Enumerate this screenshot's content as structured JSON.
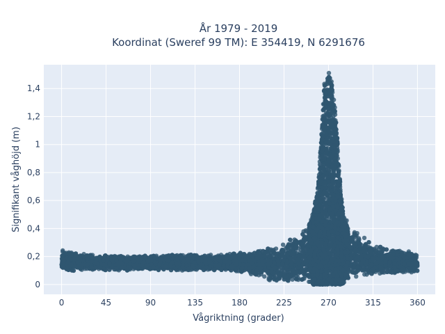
{
  "chart_data": {
    "type": "scatter",
    "title_line1": "År 1979 - 2019",
    "title_line2": "Koordinat (Sweref 99 TM): E 354419, N 6291676",
    "xlabel": "Vågriktning (grader)",
    "ylabel": "Signifikant våghöjd (m)",
    "xlim": [
      -18,
      378
    ],
    "ylim": [
      -0.07,
      1.57
    ],
    "x_ticks": [
      0,
      45,
      90,
      135,
      180,
      225,
      270,
      315,
      360
    ],
    "x_tick_labels": [
      "0",
      "45",
      "90",
      "135",
      "180",
      "225",
      "270",
      "315",
      "360"
    ],
    "y_ticks": [
      0,
      0.2,
      0.4,
      0.6,
      0.8,
      1.0,
      1.2,
      1.4
    ],
    "y_tick_labels": [
      "0",
      "0,2",
      "0,4",
      "0,6",
      "0,8",
      "1",
      "1,2",
      "1,4"
    ],
    "grid": true,
    "marker_color": "#2f5670",
    "plot_bg": "#e5ecf6",
    "envelope": {
      "description_x": [
        0,
        20,
        45,
        90,
        135,
        160,
        180,
        200,
        215,
        230,
        240,
        248,
        255,
        260,
        263,
        266,
        270,
        273,
        276,
        279,
        282,
        285,
        290,
        300,
        315,
        330,
        345,
        360
      ],
      "upper": [
        0.25,
        0.22,
        0.21,
        0.21,
        0.22,
        0.22,
        0.23,
        0.25,
        0.28,
        0.32,
        0.36,
        0.42,
        0.52,
        0.75,
        1.1,
        1.45,
        1.52,
        1.48,
        1.3,
        1.05,
        0.7,
        0.5,
        0.44,
        0.36,
        0.3,
        0.27,
        0.25,
        0.22
      ],
      "lower": [
        0.09,
        0.1,
        0.1,
        0.1,
        0.1,
        0.1,
        0.09,
        0.05,
        0.02,
        0.0,
        0.0,
        0.0,
        0.0,
        0.0,
        0.0,
        0.0,
        0.0,
        0.0,
        0.0,
        0.0,
        0.0,
        0.01,
        0.02,
        0.05,
        0.06,
        0.07,
        0.08,
        0.08
      ]
    }
  }
}
